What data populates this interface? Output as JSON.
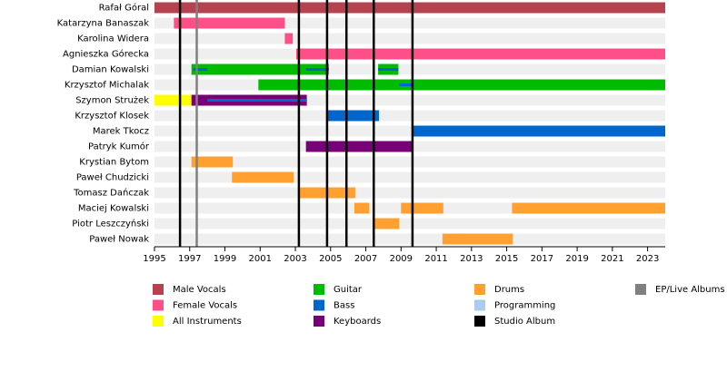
{
  "chart_data": {
    "type": "timeline",
    "xlim": [
      1995,
      2024
    ],
    "xticks": [
      1995,
      1997,
      1999,
      2001,
      2003,
      2005,
      2007,
      2009,
      2011,
      2013,
      2015,
      2017,
      2019,
      2021,
      2023
    ],
    "roles": [
      {
        "name": "Male Vocals",
        "color": "#b5434f"
      },
      {
        "name": "Female Vocals",
        "color": "#ff4f88"
      },
      {
        "name": "All Instruments",
        "color": "#ffff00"
      },
      {
        "name": "Guitar",
        "color": "#00bb00"
      },
      {
        "name": "Bass",
        "color": "#0066cc"
      },
      {
        "name": "Keyboards",
        "color": "#770077"
      },
      {
        "name": "Drums",
        "color": "#ffa030"
      },
      {
        "name": "Programming",
        "color": "#aaccee"
      },
      {
        "name": "Studio Album",
        "color": "#000000"
      },
      {
        "name": "EP/Live Albums",
        "color": "#808080"
      }
    ],
    "rows": [
      {
        "name": "Rafał Góral",
        "bars": [
          {
            "role": 0,
            "start": 1995,
            "end": 2024
          }
        ]
      },
      {
        "name": "Katarzyna Banaszak",
        "bars": [
          {
            "role": 1,
            "start": 1996.1,
            "end": 2002.4
          }
        ]
      },
      {
        "name": "Karolina Widera",
        "bars": [
          {
            "role": 1,
            "start": 2002.4,
            "end": 2002.85
          }
        ]
      },
      {
        "name": "Agnieszka Górecka",
        "bars": [
          {
            "role": 1,
            "start": 2003.05,
            "end": 2024
          }
        ]
      },
      {
        "name": "Damian Kowalski",
        "bars": [
          {
            "role": 3,
            "start": 1997.1,
            "end": 2004.9
          },
          {
            "role": 3,
            "start": 2007.7,
            "end": 2008.85
          }
        ],
        "stripes": [
          {
            "role": 4,
            "start": 1997.2,
            "end": 1998.0
          },
          {
            "role": 4,
            "start": 2003.6,
            "end": 2004.9
          },
          {
            "role": 4,
            "start": 2007.7,
            "end": 2008.85
          }
        ]
      },
      {
        "name": "Krzysztof Michalak",
        "bars": [
          {
            "role": 3,
            "start": 2000.9,
            "end": 2024
          }
        ],
        "stripes": [
          {
            "role": 4,
            "start": 2008.9,
            "end": 2009.7
          }
        ]
      },
      {
        "name": "Szymon Strużek",
        "bars": [
          {
            "role": 2,
            "start": 1995,
            "end": 1997.1
          },
          {
            "role": 5,
            "start": 1997.1,
            "end": 2003.65
          }
        ],
        "stripes": [
          {
            "role": 4,
            "start": 1998.0,
            "end": 2003.65
          }
        ]
      },
      {
        "name": "Krzysztof Klosek",
        "bars": [
          {
            "role": 4,
            "start": 2004.8,
            "end": 2007.75
          }
        ]
      },
      {
        "name": "Marek Tkocz",
        "bars": [
          {
            "role": 4,
            "start": 2009.7,
            "end": 2024
          }
        ]
      },
      {
        "name": "Patryk Kumór",
        "bars": [
          {
            "role": 5,
            "start": 2003.6,
            "end": 2009.7
          }
        ]
      },
      {
        "name": "Krystian Bytom",
        "bars": [
          {
            "role": 6,
            "start": 1997.1,
            "end": 1999.45
          }
        ]
      },
      {
        "name": "Paweł Chudzicki",
        "bars": [
          {
            "role": 6,
            "start": 1999.4,
            "end": 2002.9
          }
        ]
      },
      {
        "name": "Tomasz Dańczak",
        "bars": [
          {
            "role": 6,
            "start": 2003.25,
            "end": 2006.4
          }
        ]
      },
      {
        "name": "Maciej Kowalski",
        "bars": [
          {
            "role": 6,
            "start": 2006.35,
            "end": 2007.2
          },
          {
            "role": 6,
            "start": 2009.0,
            "end": 2011.4
          },
          {
            "role": 6,
            "start": 2015.3,
            "end": 2024
          }
        ]
      },
      {
        "name": "Piotr Leszczyński",
        "bars": [
          {
            "role": 6,
            "start": 2007.5,
            "end": 2008.9
          }
        ]
      },
      {
        "name": "Paweł Nowak",
        "bars": [
          {
            "role": 6,
            "start": 2011.35,
            "end": 2015.35
          }
        ]
      }
    ],
    "events": [
      {
        "role": 8,
        "year": 1996.45
      },
      {
        "role": 9,
        "year": 1997.4
      },
      {
        "role": 8,
        "year": 2003.2
      },
      {
        "role": 8,
        "year": 2004.8
      },
      {
        "role": 8,
        "year": 2005.9
      },
      {
        "role": 8,
        "year": 2007.45
      },
      {
        "role": 8,
        "year": 2009.65
      }
    ]
  }
}
